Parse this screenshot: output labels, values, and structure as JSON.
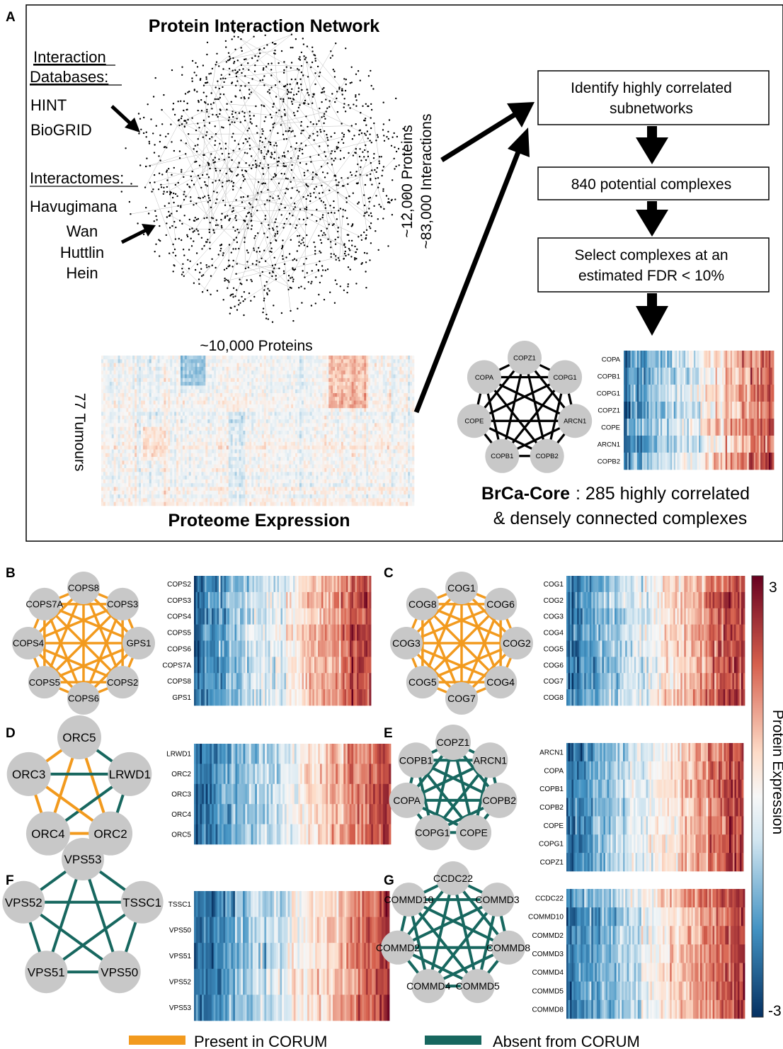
{
  "panel_labels": {
    "a": "A",
    "b": "B",
    "c": "C",
    "d": "D",
    "e": "E",
    "f": "F",
    "g": "G"
  },
  "panel_a": {
    "network_title": "Protein Interaction Network",
    "interaction_databases_heading": "Interaction Databases:",
    "databases": [
      "HINT",
      "BioGRID"
    ],
    "interactomes_heading": "Interactomes:",
    "interactomes": [
      "Havugimana",
      "Wan",
      "Huttlin",
      "Hein"
    ],
    "network_size": [
      "~12,000 Proteins",
      "~83,000 Interactions"
    ],
    "proteome_title": "Proteome Expression",
    "proteome_cols": "~10,000 Proteins",
    "proteome_rows": "77 Tumours",
    "flow_steps": [
      [
        "Identify highly correlated",
        "subnetworks"
      ],
      [
        "840 potential complexes"
      ],
      [
        "Select complexes at an",
        "estimated FDR < 10%"
      ]
    ],
    "result_label_bold": "BrCa-Core",
    "result_text": [
      ": 285 highly correlated",
      "& densely connected complexes"
    ],
    "example_complex_nodes": [
      "COPZ1",
      "COPG1",
      "ARCN1",
      "COPB2",
      "COPB1",
      "COPE",
      "COPA"
    ],
    "example_heatmap_rows": [
      "COPA",
      "COPB1",
      "COPG1",
      "COPZ1",
      "COPE",
      "ARCN1",
      "COPB2"
    ]
  },
  "complexes": [
    {
      "id": "b",
      "nodes": [
        "COPS8",
        "COPS3",
        "GPS1",
        "COPS2",
        "COPS6",
        "COPS5",
        "COPS4",
        "COPS7A"
      ],
      "edge": "present",
      "rows": [
        "COPS2",
        "COPS3",
        "COPS4",
        "COPS5",
        "COPS6",
        "COPS7A",
        "COPS8",
        "GPS1"
      ]
    },
    {
      "id": "c",
      "nodes": [
        "COG1",
        "COG6",
        "COG2",
        "COG4",
        "COG7",
        "COG5",
        "COG3",
        "COG8"
      ],
      "edge": "present",
      "rows": [
        "COG1",
        "COG2",
        "COG3",
        "COG4",
        "COG5",
        "COG6",
        "COG7",
        "COG8"
      ]
    },
    {
      "id": "d",
      "nodes": [
        "ORC5",
        "LRWD1",
        "ORC2",
        "ORC4",
        "ORC3"
      ],
      "edge": "mixed",
      "rows": [
        "LRWD1",
        "ORC2",
        "ORC3",
        "ORC4",
        "ORC5"
      ]
    },
    {
      "id": "e",
      "nodes": [
        "COPZ1",
        "ARCN1",
        "COPB2",
        "COPE",
        "COPG1",
        "COPA",
        "COPB1"
      ],
      "edge": "absent",
      "rows": [
        "ARCN1",
        "COPA",
        "COPB1",
        "COPB2",
        "COPE",
        "COPG1",
        "COPZ1"
      ]
    },
    {
      "id": "f",
      "nodes": [
        "VPS53",
        "TSSC1",
        "VPS50",
        "VPS51",
        "VPS52"
      ],
      "edge": "absent",
      "rows": [
        "TSSC1",
        "VPS50",
        "VPS51",
        "VPS52",
        "VPS53"
      ]
    },
    {
      "id": "g",
      "nodes": [
        "CCDC22",
        "COMMD3",
        "COMMD8",
        "COMMD5",
        "COMMD4",
        "COMMD2",
        "COMMD10"
      ],
      "edge": "absent",
      "rows": [
        "CCDC22",
        "COMMD10",
        "COMMD2",
        "COMMD3",
        "COMMD4",
        "COMMD5",
        "COMMD8"
      ]
    }
  ],
  "colorbar": {
    "max": "3",
    "min": "-3",
    "label": "Protein Expression"
  },
  "legend": {
    "present": "Present in CORUM",
    "absent": "Absent from CORUM"
  },
  "colors": {
    "present": "#F29A1E",
    "absent": "#17675F",
    "node": "#C8C8C8",
    "high": "#67001F",
    "low": "#053061",
    "mid": "#F7F7F7"
  }
}
